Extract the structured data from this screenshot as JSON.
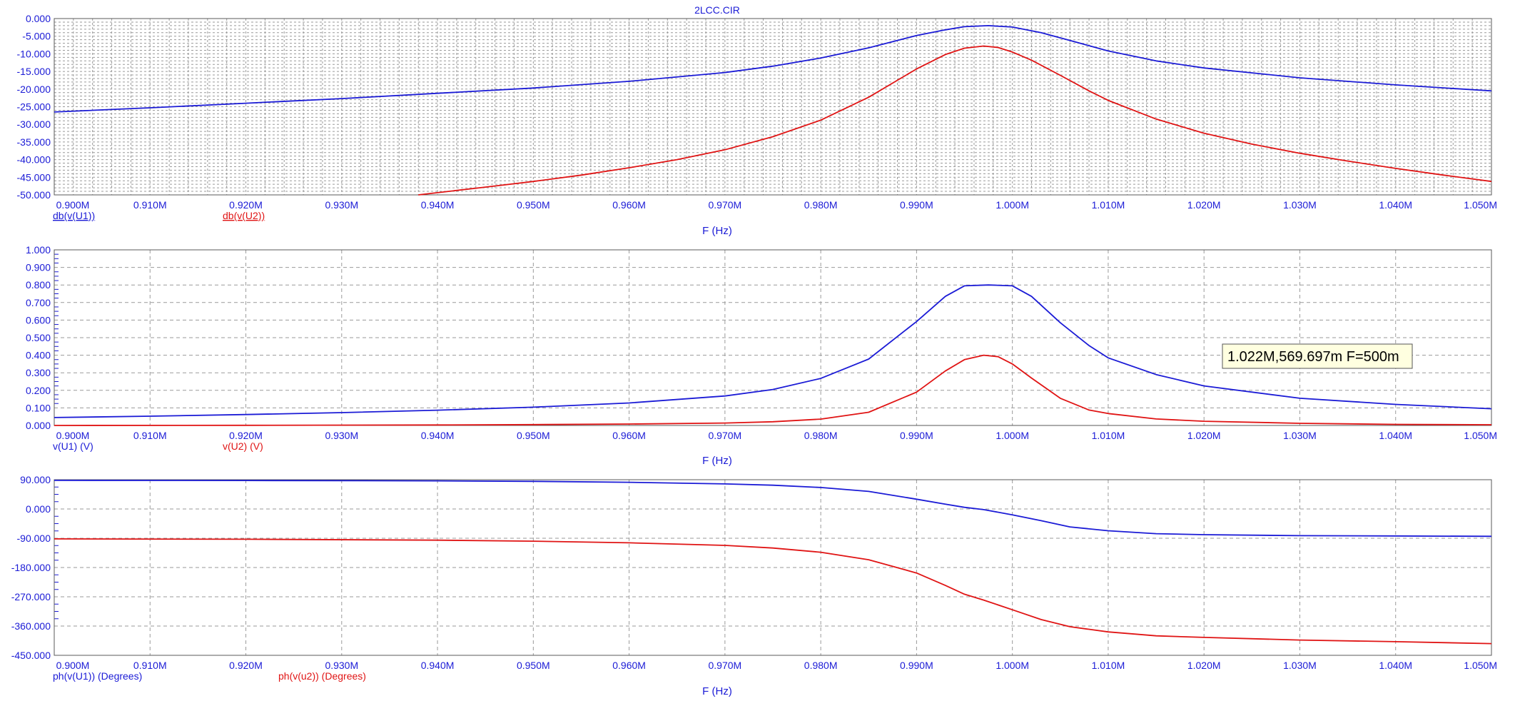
{
  "title": "2LCC.CIR",
  "colors": {
    "blue": "#1b1bd6",
    "red": "#e01414",
    "axis": "#1b1bd6",
    "grid": "#9a9a9a",
    "tooltip_bg": "#ffffe0"
  },
  "x_ticks": [
    "0.900M",
    "0.910M",
    "0.920M",
    "0.930M",
    "0.940M",
    "0.950M",
    "0.960M",
    "0.970M",
    "0.980M",
    "0.990M",
    "1.000M",
    "1.010M",
    "1.020M",
    "1.030M",
    "1.040M",
    "1.050M"
  ],
  "chart_data": [
    {
      "type": "line",
      "title": "2LCC.CIR",
      "xlabel": "F (Hz)",
      "ylabel": "",
      "xlim": [
        0.9,
        1.05
      ],
      "ylim": [
        -50,
        0
      ],
      "y_ticks": [
        "0.000",
        "-5.000",
        "-10.000",
        "-15.000",
        "-20.000",
        "-25.000",
        "-30.000",
        "-35.000",
        "-40.000",
        "-45.000",
        "-50.000"
      ],
      "grid": "dense",
      "series": [
        {
          "name": "db(v(U1))",
          "color": "#1b1bd6",
          "x": [
            0.9,
            0.91,
            0.92,
            0.93,
            0.94,
            0.95,
            0.96,
            0.97,
            0.975,
            0.98,
            0.985,
            0.99,
            0.993,
            0.995,
            0.9975,
            1.0,
            1.003,
            1.006,
            1.01,
            1.015,
            1.02,
            1.03,
            1.04,
            1.05
          ],
          "y": [
            -26.5,
            -25.3,
            -24.0,
            -22.7,
            -21.2,
            -19.7,
            -17.8,
            -15.3,
            -13.5,
            -11.2,
            -8.3,
            -4.8,
            -3.2,
            -2.3,
            -2.0,
            -2.4,
            -4.0,
            -6.2,
            -9.2,
            -12.0,
            -14.0,
            -16.8,
            -18.8,
            -20.5
          ]
        },
        {
          "name": "db(v(U2))",
          "color": "#e01414",
          "x": [
            0.938,
            0.945,
            0.95,
            0.955,
            0.96,
            0.965,
            0.97,
            0.975,
            0.98,
            0.985,
            0.99,
            0.993,
            0.995,
            0.997,
            0.9985,
            1.0,
            1.002,
            1.005,
            1.008,
            1.01,
            1.015,
            1.02,
            1.025,
            1.03,
            1.035,
            1.04,
            1.045,
            1.05
          ],
          "y": [
            -50,
            -47.8,
            -46.2,
            -44.4,
            -42.3,
            -40.0,
            -37.2,
            -33.5,
            -28.8,
            -22.3,
            -14.3,
            -10.2,
            -8.4,
            -7.8,
            -8.2,
            -9.5,
            -11.8,
            -16.1,
            -20.5,
            -23.2,
            -28.5,
            -32.5,
            -35.6,
            -38.2,
            -40.4,
            -42.5,
            -44.4,
            -46.2
          ]
        }
      ]
    },
    {
      "type": "line",
      "xlabel": "F (Hz)",
      "ylabel": "",
      "xlim": [
        0.9,
        1.05
      ],
      "ylim": [
        0,
        1
      ],
      "y_ticks": [
        "1.000",
        "0.900",
        "0.800",
        "0.700",
        "0.600",
        "0.500",
        "0.400",
        "0.300",
        "0.200",
        "0.100",
        "0.000"
      ],
      "grid": "dashed",
      "annotation": "1.022M,569.697m F=500m",
      "series": [
        {
          "name": "v(U1) (V)",
          "color": "#1b1bd6",
          "x": [
            0.9,
            0.91,
            0.92,
            0.93,
            0.94,
            0.95,
            0.96,
            0.97,
            0.975,
            0.98,
            0.985,
            0.99,
            0.993,
            0.995,
            0.9975,
            1.0,
            1.002,
            1.005,
            1.008,
            1.01,
            1.015,
            1.02,
            1.03,
            1.04,
            1.05
          ],
          "y": [
            0.045,
            0.053,
            0.062,
            0.073,
            0.087,
            0.104,
            0.128,
            0.168,
            0.205,
            0.268,
            0.378,
            0.592,
            0.735,
            0.795,
            0.8,
            0.795,
            0.735,
            0.585,
            0.455,
            0.385,
            0.29,
            0.225,
            0.155,
            0.12,
            0.095
          ]
        },
        {
          "name": "v(U2) (V)",
          "color": "#e01414",
          "x": [
            0.9,
            0.92,
            0.94,
            0.95,
            0.96,
            0.97,
            0.975,
            0.98,
            0.985,
            0.99,
            0.993,
            0.995,
            0.997,
            0.9985,
            1.0,
            1.002,
            1.005,
            1.008,
            1.01,
            1.015,
            1.02,
            1.03,
            1.04,
            1.05
          ],
          "y": [
            0.0,
            0.001,
            0.003,
            0.005,
            0.008,
            0.014,
            0.021,
            0.036,
            0.075,
            0.19,
            0.31,
            0.375,
            0.4,
            0.392,
            0.35,
            0.27,
            0.155,
            0.088,
            0.068,
            0.037,
            0.024,
            0.012,
            0.006,
            0.004
          ]
        }
      ]
    },
    {
      "type": "line",
      "xlabel": "F (Hz)",
      "ylabel": "",
      "xlim": [
        0.9,
        1.05
      ],
      "ylim": [
        -450,
        90
      ],
      "y_ticks": [
        "90.000",
        "0.000",
        "-90.000",
        "-180.000",
        "-270.000",
        "-360.000",
        "-450.000"
      ],
      "grid": "dashed",
      "series": [
        {
          "name": "ph(v(U1)) (Degrees)",
          "color": "#1b1bd6",
          "x": [
            0.9,
            0.92,
            0.94,
            0.95,
            0.96,
            0.97,
            0.975,
            0.98,
            0.985,
            0.99,
            0.993,
            0.995,
            0.997,
            1.0,
            1.003,
            1.006,
            1.01,
            1.015,
            1.02,
            1.03,
            1.04,
            1.05
          ],
          "y": [
            88,
            87.5,
            86.5,
            85,
            82,
            77,
            73,
            66,
            54,
            30,
            15,
            5,
            -2,
            -18,
            -36,
            -55,
            -67,
            -76,
            -79,
            -82,
            -83,
            -84
          ]
        },
        {
          "name": "ph(v(u2)) (Degrees)",
          "color": "#e01414",
          "x": [
            0.9,
            0.92,
            0.94,
            0.95,
            0.96,
            0.97,
            0.975,
            0.98,
            0.985,
            0.99,
            0.993,
            0.995,
            0.997,
            1.0,
            1.003,
            1.006,
            1.01,
            1.015,
            1.02,
            1.03,
            1.04,
            1.05
          ],
          "y": [
            -92,
            -93,
            -96,
            -99,
            -104,
            -112,
            -120,
            -133,
            -156,
            -197,
            -235,
            -262,
            -280,
            -310,
            -340,
            -362,
            -378,
            -390,
            -395,
            -403,
            -408,
            -414
          ]
        }
      ]
    }
  ]
}
